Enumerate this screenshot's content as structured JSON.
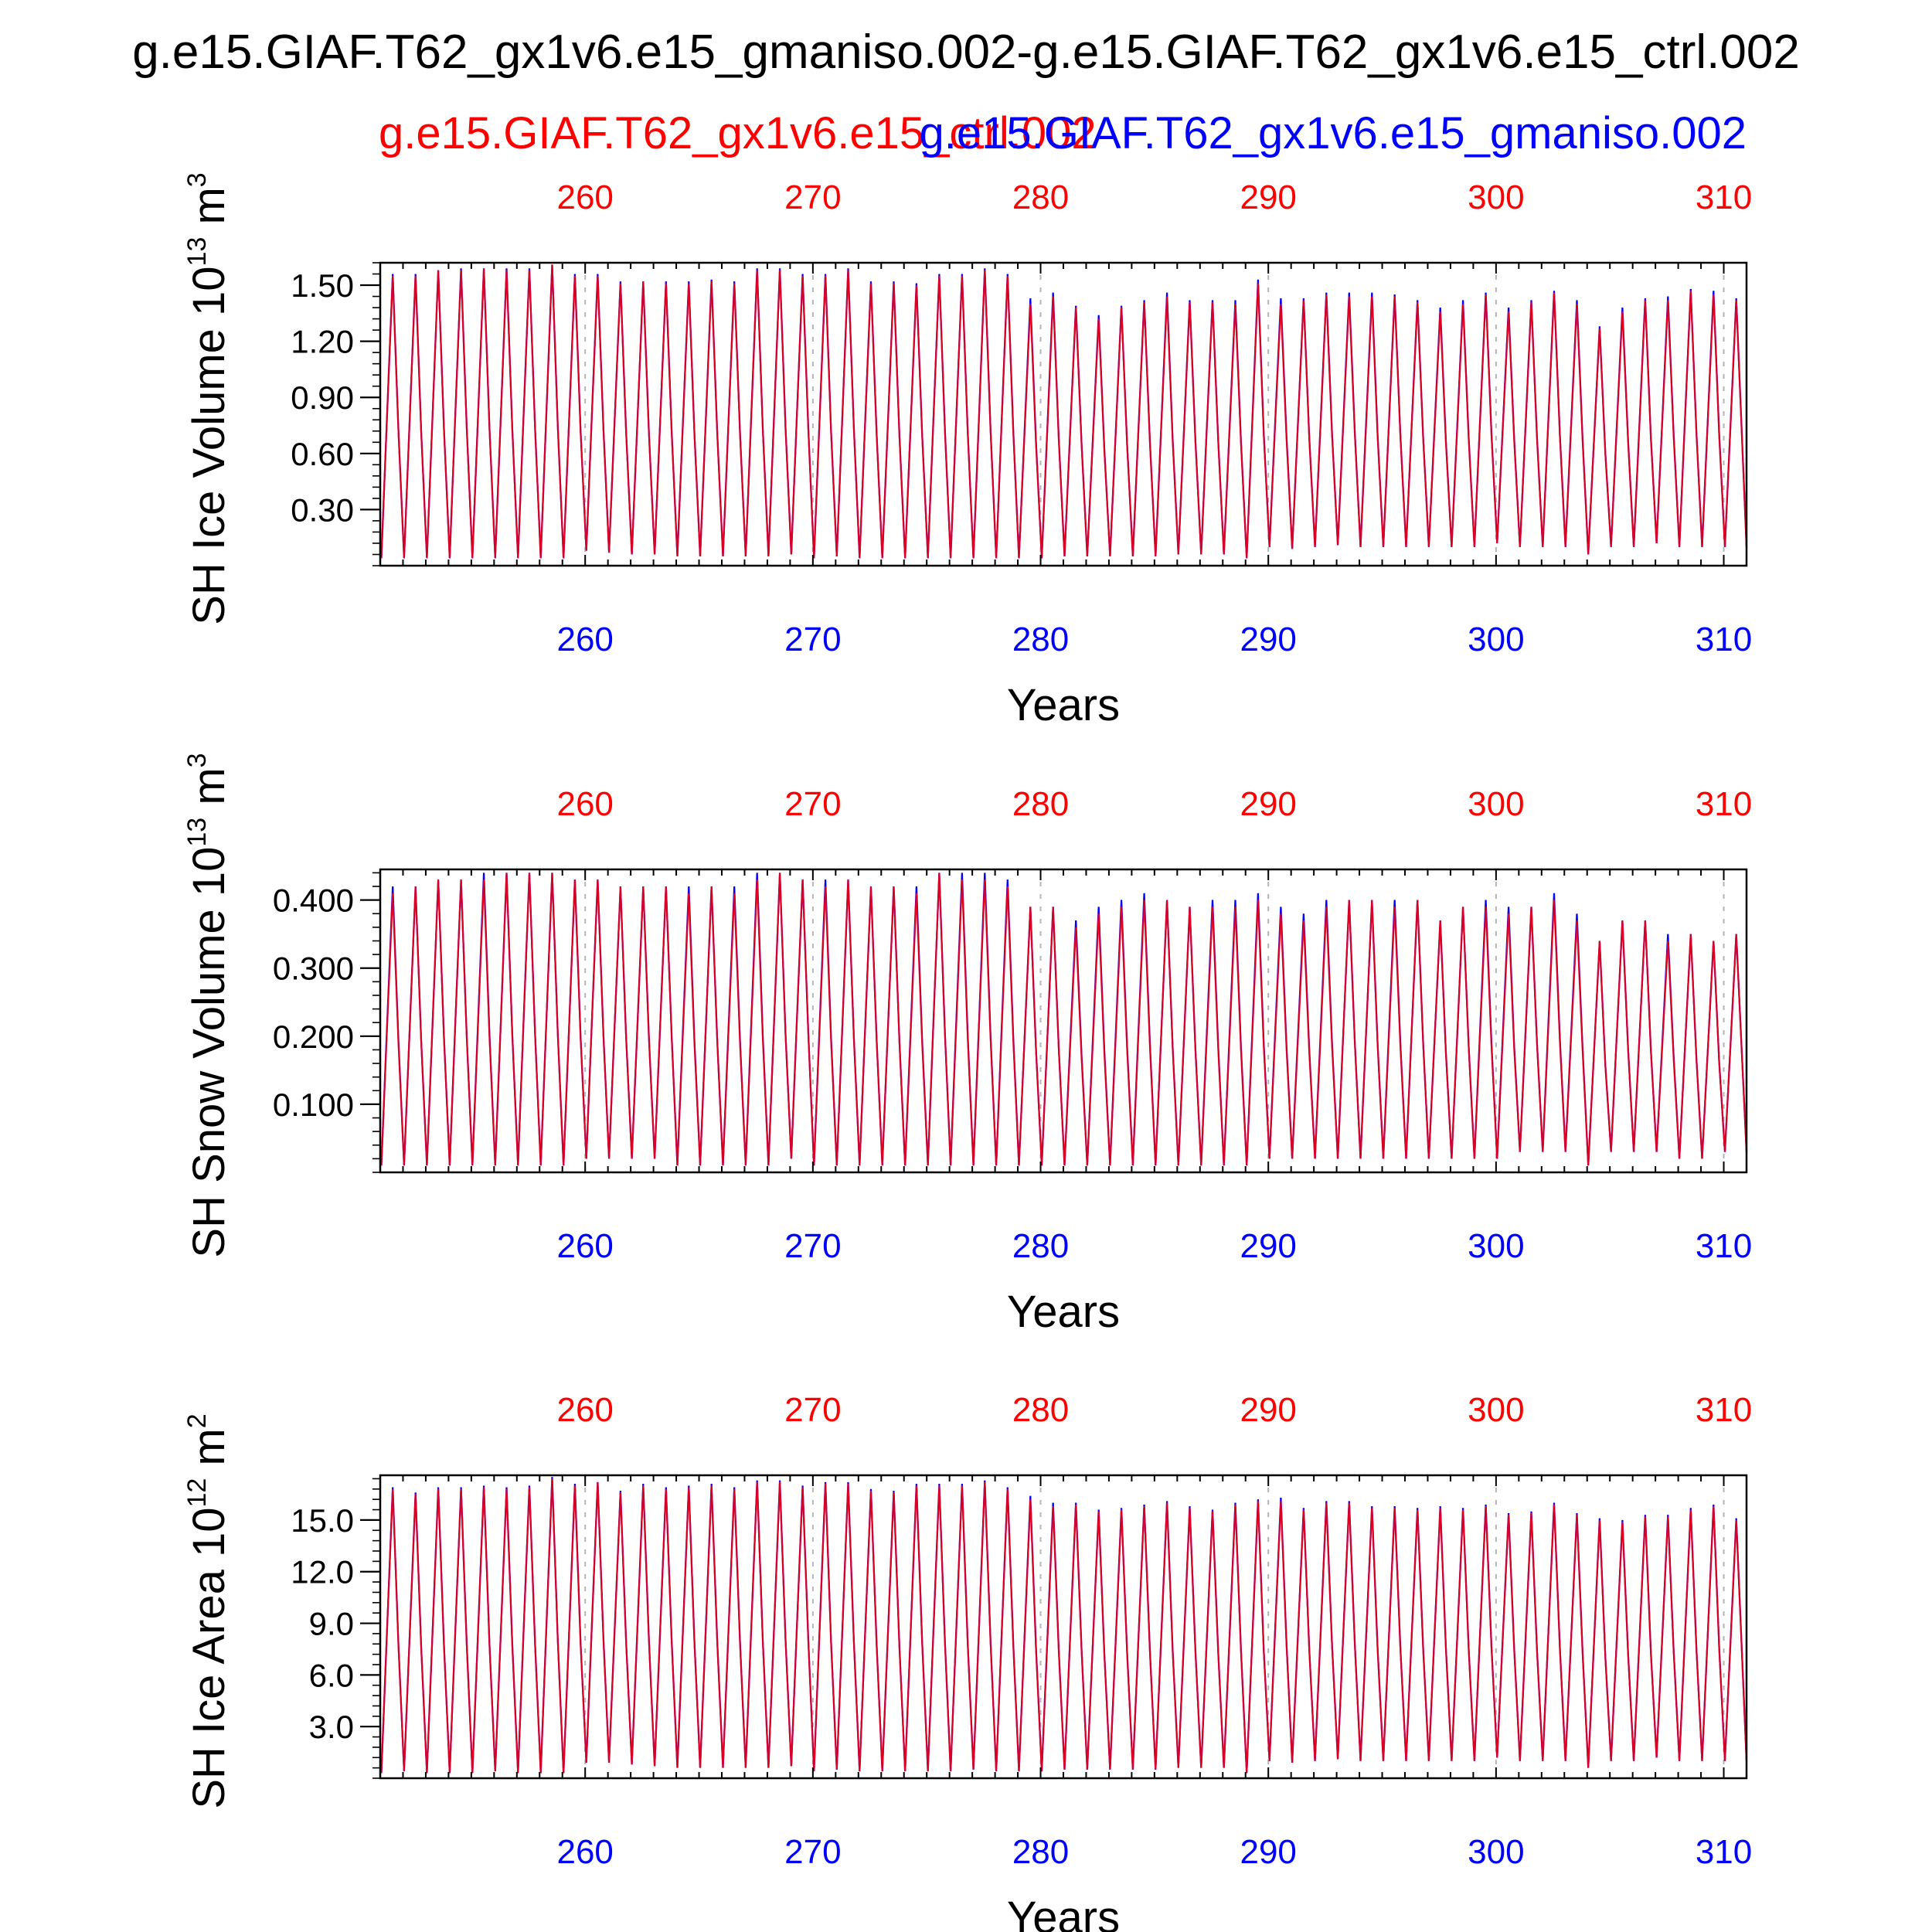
{
  "page": {
    "main_title": "g.e15.GIAF.T62_gx1v6.e15_gmaniso.002-g.e15.GIAF.T62_gx1v6.e15_ctrl.002",
    "legend_ctrl": "g.e15.GIAF.T62_gx1v6.e15_ctrl.002",
    "legend_gmaniso": "g.e15.GIAF.T62_gx1v6.e15_gmaniso.002"
  },
  "colors": {
    "ctrl": "#ff0000",
    "gmaniso": "#0000ff",
    "axis": "#000000",
    "grid": "#b4b4b4"
  },
  "chart_data": [
    {
      "type": "line",
      "id": "ice-volume",
      "ylabel_main": "SH Ice Volume 10",
      "ylabel_exp": "13",
      "ylabel_unit": " m",
      "ylabel_unit_exp": "3",
      "xlabel": "Years",
      "xlim": [
        251,
        311
      ],
      "ylim": [
        0.0,
        1.62
      ],
      "xticks": [
        260,
        270,
        280,
        290,
        300,
        310
      ],
      "xtick_labels": [
        "260",
        "270",
        "280",
        "290",
        "300",
        "310"
      ],
      "yticks": [
        0.3,
        0.6,
        0.9,
        1.2,
        1.5
      ],
      "ytick_labels": [
        "0.30",
        "0.60",
        "0.90",
        "1.20",
        "1.50"
      ],
      "ctrl_max": [
        1.55,
        1.55,
        1.58,
        1.58,
        1.59,
        1.58,
        1.58,
        1.61,
        1.55,
        1.55,
        1.51,
        1.52,
        1.51,
        1.51,
        1.52,
        1.51,
        1.58,
        1.58,
        1.55,
        1.55,
        1.58,
        1.51,
        1.51,
        1.5,
        1.55,
        1.55,
        1.58,
        1.55,
        1.4,
        1.44,
        1.38,
        1.32,
        1.38,
        1.41,
        1.44,
        1.41,
        1.41,
        1.4,
        1.51,
        1.4,
        1.42,
        1.45,
        1.44,
        1.44,
        1.44,
        1.41,
        1.36,
        1.4,
        1.45,
        1.36,
        1.41,
        1.46,
        1.4,
        1.27,
        1.36,
        1.42,
        1.42,
        1.47,
        1.45,
        1.42
      ],
      "ctrl_min": [
        0.04,
        0.04,
        0.04,
        0.04,
        0.04,
        0.04,
        0.04,
        0.04,
        0.04,
        0.08,
        0.07,
        0.06,
        0.06,
        0.05,
        0.05,
        0.05,
        0.05,
        0.05,
        0.06,
        0.04,
        0.05,
        0.04,
        0.04,
        0.04,
        0.04,
        0.04,
        0.04,
        0.04,
        0.04,
        0.04,
        0.05,
        0.05,
        0.05,
        0.05,
        0.05,
        0.06,
        0.06,
        0.06,
        0.04,
        0.1,
        0.09,
        0.1,
        0.11,
        0.1,
        0.1,
        0.1,
        0.1,
        0.1,
        0.1,
        0.12,
        0.1,
        0.1,
        0.1,
        0.06,
        0.1,
        0.1,
        0.12,
        0.1,
        0.1,
        0.1
      ],
      "gmaniso_max": [
        1.56,
        1.56,
        1.58,
        1.59,
        1.59,
        1.59,
        1.59,
        1.61,
        1.56,
        1.56,
        1.52,
        1.52,
        1.52,
        1.52,
        1.53,
        1.52,
        1.59,
        1.59,
        1.56,
        1.56,
        1.59,
        1.52,
        1.52,
        1.51,
        1.56,
        1.56,
        1.59,
        1.56,
        1.43,
        1.46,
        1.39,
        1.34,
        1.39,
        1.42,
        1.46,
        1.42,
        1.42,
        1.42,
        1.53,
        1.43,
        1.43,
        1.46,
        1.46,
        1.46,
        1.45,
        1.42,
        1.38,
        1.42,
        1.46,
        1.38,
        1.42,
        1.47,
        1.42,
        1.28,
        1.38,
        1.43,
        1.44,
        1.48,
        1.47,
        1.43
      ],
      "gmaniso_min": [
        0.04,
        0.04,
        0.04,
        0.04,
        0.04,
        0.04,
        0.04,
        0.04,
        0.04,
        0.08,
        0.07,
        0.06,
        0.06,
        0.05,
        0.05,
        0.05,
        0.05,
        0.05,
        0.06,
        0.04,
        0.05,
        0.04,
        0.04,
        0.04,
        0.04,
        0.04,
        0.04,
        0.04,
        0.04,
        0.04,
        0.05,
        0.05,
        0.05,
        0.05,
        0.05,
        0.06,
        0.06,
        0.06,
        0.04,
        0.1,
        0.09,
        0.1,
        0.11,
        0.1,
        0.1,
        0.1,
        0.1,
        0.1,
        0.1,
        0.12,
        0.1,
        0.1,
        0.1,
        0.06,
        0.1,
        0.1,
        0.12,
        0.1,
        0.1,
        0.1
      ]
    },
    {
      "type": "line",
      "id": "snow-volume",
      "ylabel_main": "SH Snow Volume 10",
      "ylabel_exp": "13",
      "ylabel_unit": " m",
      "ylabel_unit_exp": "3",
      "xlabel": "Years",
      "xlim": [
        251,
        311
      ],
      "ylim": [
        0.0,
        0.445
      ],
      "xticks": [
        260,
        270,
        280,
        290,
        300,
        310
      ],
      "xtick_labels": [
        "260",
        "270",
        "280",
        "290",
        "300",
        "310"
      ],
      "yticks": [
        0.1,
        0.2,
        0.3,
        0.4
      ],
      "ytick_labels": [
        "0.100",
        "0.200",
        "0.300",
        "0.400"
      ],
      "ctrl_max": [
        0.41,
        0.42,
        0.43,
        0.43,
        0.43,
        0.44,
        0.44,
        0.44,
        0.43,
        0.43,
        0.42,
        0.42,
        0.42,
        0.41,
        0.42,
        0.41,
        0.43,
        0.44,
        0.43,
        0.42,
        0.43,
        0.42,
        0.42,
        0.41,
        0.44,
        0.43,
        0.43,
        0.42,
        0.39,
        0.39,
        0.36,
        0.38,
        0.39,
        0.4,
        0.4,
        0.39,
        0.39,
        0.39,
        0.4,
        0.38,
        0.37,
        0.39,
        0.4,
        0.4,
        0.39,
        0.4,
        0.37,
        0.39,
        0.39,
        0.38,
        0.39,
        0.4,
        0.37,
        0.34,
        0.37,
        0.37,
        0.34,
        0.35,
        0.34,
        0.35
      ],
      "ctrl_min": [
        0.01,
        0.01,
        0.01,
        0.01,
        0.01,
        0.01,
        0.01,
        0.01,
        0.01,
        0.02,
        0.02,
        0.02,
        0.02,
        0.01,
        0.01,
        0.01,
        0.01,
        0.01,
        0.02,
        0.01,
        0.01,
        0.01,
        0.01,
        0.01,
        0.01,
        0.01,
        0.01,
        0.01,
        0.01,
        0.01,
        0.01,
        0.01,
        0.01,
        0.01,
        0.01,
        0.01,
        0.01,
        0.01,
        0.01,
        0.02,
        0.02,
        0.02,
        0.02,
        0.02,
        0.02,
        0.02,
        0.02,
        0.02,
        0.02,
        0.02,
        0.03,
        0.03,
        0.03,
        0.01,
        0.03,
        0.03,
        0.03,
        0.02,
        0.02,
        0.03
      ],
      "gmaniso_max": [
        0.42,
        0.42,
        0.43,
        0.43,
        0.44,
        0.44,
        0.44,
        0.44,
        0.43,
        0.43,
        0.42,
        0.42,
        0.42,
        0.42,
        0.42,
        0.42,
        0.44,
        0.44,
        0.43,
        0.43,
        0.43,
        0.42,
        0.42,
        0.42,
        0.44,
        0.44,
        0.44,
        0.43,
        0.39,
        0.39,
        0.37,
        0.39,
        0.4,
        0.41,
        0.4,
        0.39,
        0.4,
        0.4,
        0.41,
        0.39,
        0.38,
        0.4,
        0.4,
        0.4,
        0.4,
        0.4,
        0.37,
        0.39,
        0.4,
        0.39,
        0.39,
        0.41,
        0.38,
        0.34,
        0.37,
        0.37,
        0.35,
        0.35,
        0.34,
        0.35
      ],
      "gmaniso_min": [
        0.01,
        0.01,
        0.01,
        0.01,
        0.01,
        0.01,
        0.01,
        0.01,
        0.01,
        0.02,
        0.02,
        0.02,
        0.02,
        0.01,
        0.01,
        0.01,
        0.01,
        0.01,
        0.02,
        0.01,
        0.01,
        0.01,
        0.01,
        0.01,
        0.01,
        0.01,
        0.01,
        0.01,
        0.01,
        0.01,
        0.01,
        0.01,
        0.01,
        0.01,
        0.01,
        0.01,
        0.01,
        0.01,
        0.01,
        0.02,
        0.02,
        0.02,
        0.02,
        0.02,
        0.02,
        0.02,
        0.02,
        0.02,
        0.02,
        0.02,
        0.03,
        0.03,
        0.03,
        0.01,
        0.03,
        0.03,
        0.03,
        0.02,
        0.02,
        0.03
      ]
    },
    {
      "type": "line",
      "id": "ice-area",
      "ylabel_main": "SH Ice Area 10",
      "ylabel_exp": "12",
      "ylabel_unit": " m",
      "ylabel_unit_exp": "2",
      "xlabel": "Years",
      "xlim": [
        251,
        311
      ],
      "ylim": [
        0.0,
        17.6
      ],
      "xticks": [
        260,
        270,
        280,
        290,
        300,
        310
      ],
      "xtick_labels": [
        "260",
        "270",
        "280",
        "290",
        "300",
        "310"
      ],
      "yticks": [
        3,
        6,
        9,
        12,
        15
      ],
      "ytick_labels": [
        "3.0",
        "6.0",
        "9.0",
        "12.0",
        "15.0"
      ],
      "ctrl_max": [
        16.8,
        16.5,
        16.8,
        16.8,
        16.9,
        16.8,
        16.9,
        17.4,
        17.0,
        17.2,
        16.6,
        17.0,
        16.8,
        16.9,
        17.0,
        16.8,
        17.2,
        17.2,
        16.9,
        17.1,
        17.1,
        16.7,
        16.6,
        17.0,
        17.0,
        17.0,
        17.2,
        16.8,
        16.2,
        15.8,
        15.9,
        15.5,
        15.6,
        15.8,
        16.0,
        15.7,
        15.5,
        15.9,
        16.1,
        16.1,
        15.6,
        16.0,
        16.0,
        15.7,
        15.7,
        15.6,
        15.7,
        15.6,
        15.8,
        15.3,
        15.4,
        15.9,
        15.3,
        15.0,
        14.9,
        15.2,
        15.2,
        15.6,
        15.8,
        15.0
      ],
      "ctrl_min": [
        0.3,
        0.4,
        0.3,
        0.3,
        0.3,
        0.4,
        0.3,
        0.3,
        0.3,
        0.9,
        0.9,
        0.8,
        0.7,
        0.6,
        0.6,
        0.6,
        0.6,
        0.6,
        0.7,
        0.4,
        0.5,
        0.4,
        0.4,
        0.4,
        0.4,
        0.4,
        0.5,
        0.4,
        0.4,
        0.4,
        0.5,
        0.5,
        0.5,
        0.5,
        0.5,
        0.6,
        0.6,
        0.6,
        0.3,
        1.0,
        0.9,
        1.0,
        1.1,
        1.0,
        1.0,
        1.0,
        1.0,
        1.0,
        1.0,
        1.2,
        1.0,
        1.0,
        1.0,
        0.6,
        1.0,
        1.0,
        1.2,
        1.0,
        1.0,
        1.0
      ],
      "gmaniso_max": [
        16.9,
        16.6,
        16.9,
        16.9,
        17.0,
        16.9,
        17.0,
        17.5,
        17.1,
        17.2,
        16.7,
        17.1,
        16.9,
        17.0,
        17.1,
        16.9,
        17.3,
        17.3,
        17.0,
        17.2,
        17.2,
        16.8,
        16.7,
        17.1,
        17.1,
        17.1,
        17.3,
        16.9,
        16.4,
        16.0,
        16.0,
        15.6,
        15.7,
        15.9,
        16.1,
        15.8,
        15.6,
        16.0,
        16.2,
        16.3,
        15.7,
        16.1,
        16.1,
        15.8,
        15.8,
        15.7,
        15.8,
        15.7,
        15.9,
        15.4,
        15.5,
        16.0,
        15.4,
        15.1,
        15.0,
        15.3,
        15.3,
        15.7,
        15.9,
        15.1
      ],
      "gmaniso_min": [
        0.3,
        0.4,
        0.3,
        0.3,
        0.3,
        0.4,
        0.3,
        0.3,
        0.3,
        0.9,
        0.9,
        0.8,
        0.7,
        0.6,
        0.6,
        0.6,
        0.6,
        0.6,
        0.7,
        0.4,
        0.5,
        0.4,
        0.4,
        0.4,
        0.4,
        0.4,
        0.5,
        0.4,
        0.4,
        0.4,
        0.5,
        0.5,
        0.5,
        0.5,
        0.5,
        0.6,
        0.6,
        0.6,
        0.3,
        1.0,
        0.9,
        1.0,
        1.1,
        1.0,
        1.0,
        1.0,
        1.0,
        1.0,
        1.0,
        1.2,
        1.0,
        1.0,
        1.0,
        0.6,
        1.0,
        1.0,
        1.2,
        1.0,
        1.0,
        1.0
      ]
    }
  ]
}
